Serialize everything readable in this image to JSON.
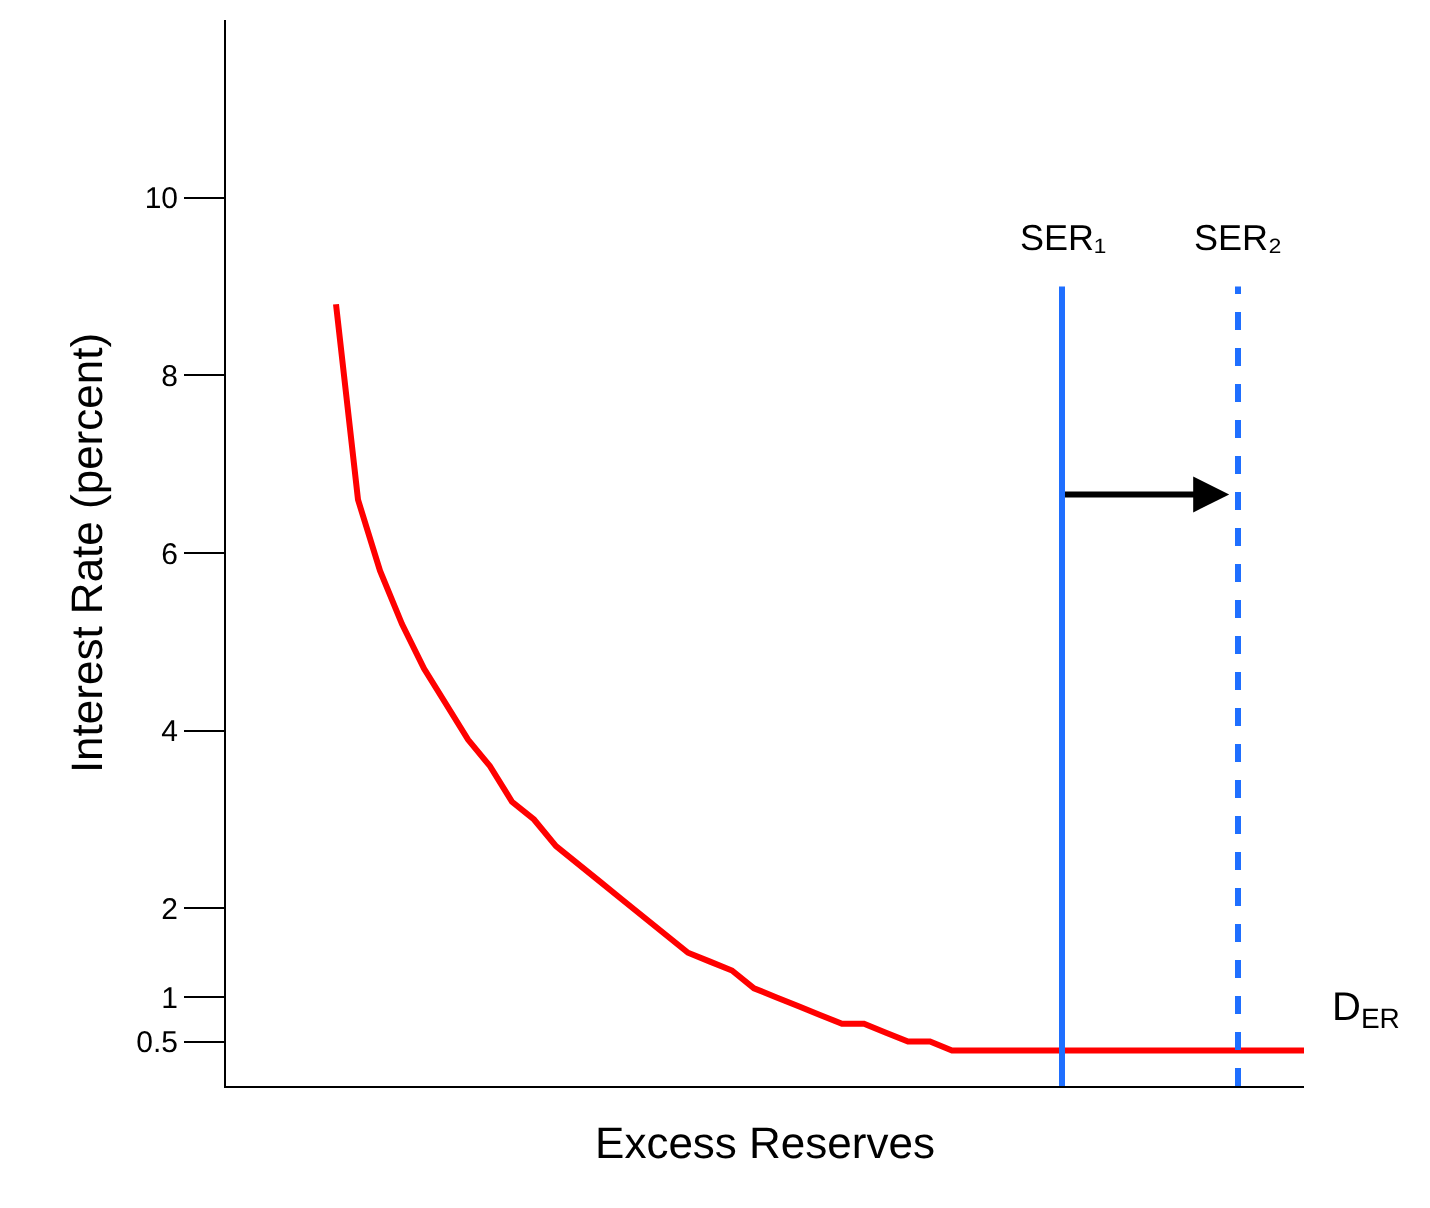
{
  "chart_data": {
    "type": "line",
    "xlabel": "Excess Reserves",
    "ylabel": "Interest Rate (percent)",
    "categories": [
      null,
      null,
      null,
      null,
      null,
      null,
      null,
      null,
      null,
      null,
      null,
      null,
      null,
      null,
      null,
      null,
      null,
      null,
      null,
      null,
      null,
      null,
      null,
      null,
      null,
      null,
      null,
      null,
      null,
      null,
      null,
      null,
      null,
      null,
      null,
      null,
      null,
      null,
      null,
      null,
      null,
      null,
      null,
      null,
      null,
      null,
      null,
      null,
      null,
      null
    ],
    "ylim": [
      0,
      12
    ],
    "yticks": [
      0.5,
      1,
      2,
      4,
      6,
      8,
      10
    ],
    "tick_labels": "y",
    "legend": false,
    "marker": "none",
    "series": [
      {
        "name": "D$_{ER}$",
        "color": "#ff0000",
        "values": [
          null,
          null,
          null,
          null,
          null,
          8.8,
          6.6,
          5.8,
          5.2,
          4.7,
          4.3,
          3.9,
          3.6,
          3.2,
          3.0,
          2.7,
          2.5,
          2.3,
          2.1,
          1.9,
          1.7,
          1.5,
          1.4,
          1.3,
          1.1,
          1.0,
          0.9,
          0.8,
          0.7,
          0.7,
          0.6,
          0.5,
          0.5,
          0.4,
          0.4,
          0.4,
          0.4,
          0.4,
          0.4,
          0.4,
          0.4,
          0.4,
          0.4,
          0.4,
          0.4,
          0.4,
          0.4,
          0.4,
          0.4,
          0.4
        ]
      }
    ],
    "annotations": [
      "SER₁",
      "SER₂"
    ]
  }
}
